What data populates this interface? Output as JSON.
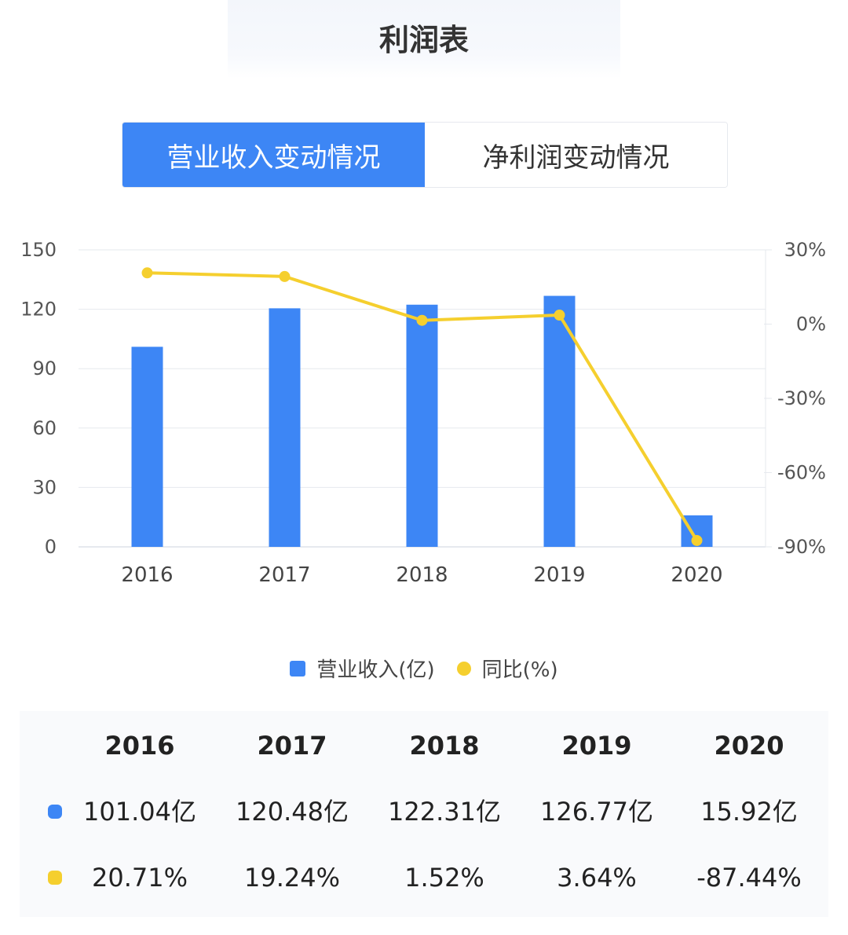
{
  "page": {
    "title": "利润表"
  },
  "tabs": [
    {
      "label": "营业收入变动情况",
      "active": true
    },
    {
      "label": "净利润变动情况",
      "active": false
    }
  ],
  "colors": {
    "bar": "#3d86f5",
    "line": "#f5cf2e",
    "grid": "#e6e9ee",
    "axis_text": "#555555"
  },
  "chart_data": {
    "type": "bar",
    "categories": [
      "2016",
      "2017",
      "2018",
      "2019",
      "2020"
    ],
    "series": [
      {
        "name": "营业收入(亿)",
        "type": "bar",
        "axis": "left",
        "values": [
          101.04,
          120.48,
          122.31,
          126.77,
          15.92
        ]
      },
      {
        "name": "同比(%)",
        "type": "line",
        "axis": "right",
        "values": [
          20.71,
          19.24,
          1.52,
          3.64,
          -87.44
        ]
      }
    ],
    "ylim_left": [
      0,
      150
    ],
    "yticks_left": [
      "0",
      "30",
      "60",
      "90",
      "120",
      "150"
    ],
    "ylim_right": [
      -90,
      30
    ],
    "yticks_right": [
      "-90%",
      "-60%",
      "-30%",
      "0%",
      "30%"
    ],
    "legend": {
      "placement": "bottom-center"
    }
  },
  "legend": {
    "revenue": "营业收入(亿)",
    "yoy": "同比(%)"
  },
  "table": {
    "years": [
      "2016",
      "2017",
      "2018",
      "2019",
      "2020"
    ],
    "revenue": [
      "101.04亿",
      "120.48亿",
      "122.31亿",
      "126.77亿",
      "15.92亿"
    ],
    "yoy": [
      "20.71%",
      "19.24%",
      "1.52%",
      "3.64%",
      "-87.44%"
    ]
  }
}
